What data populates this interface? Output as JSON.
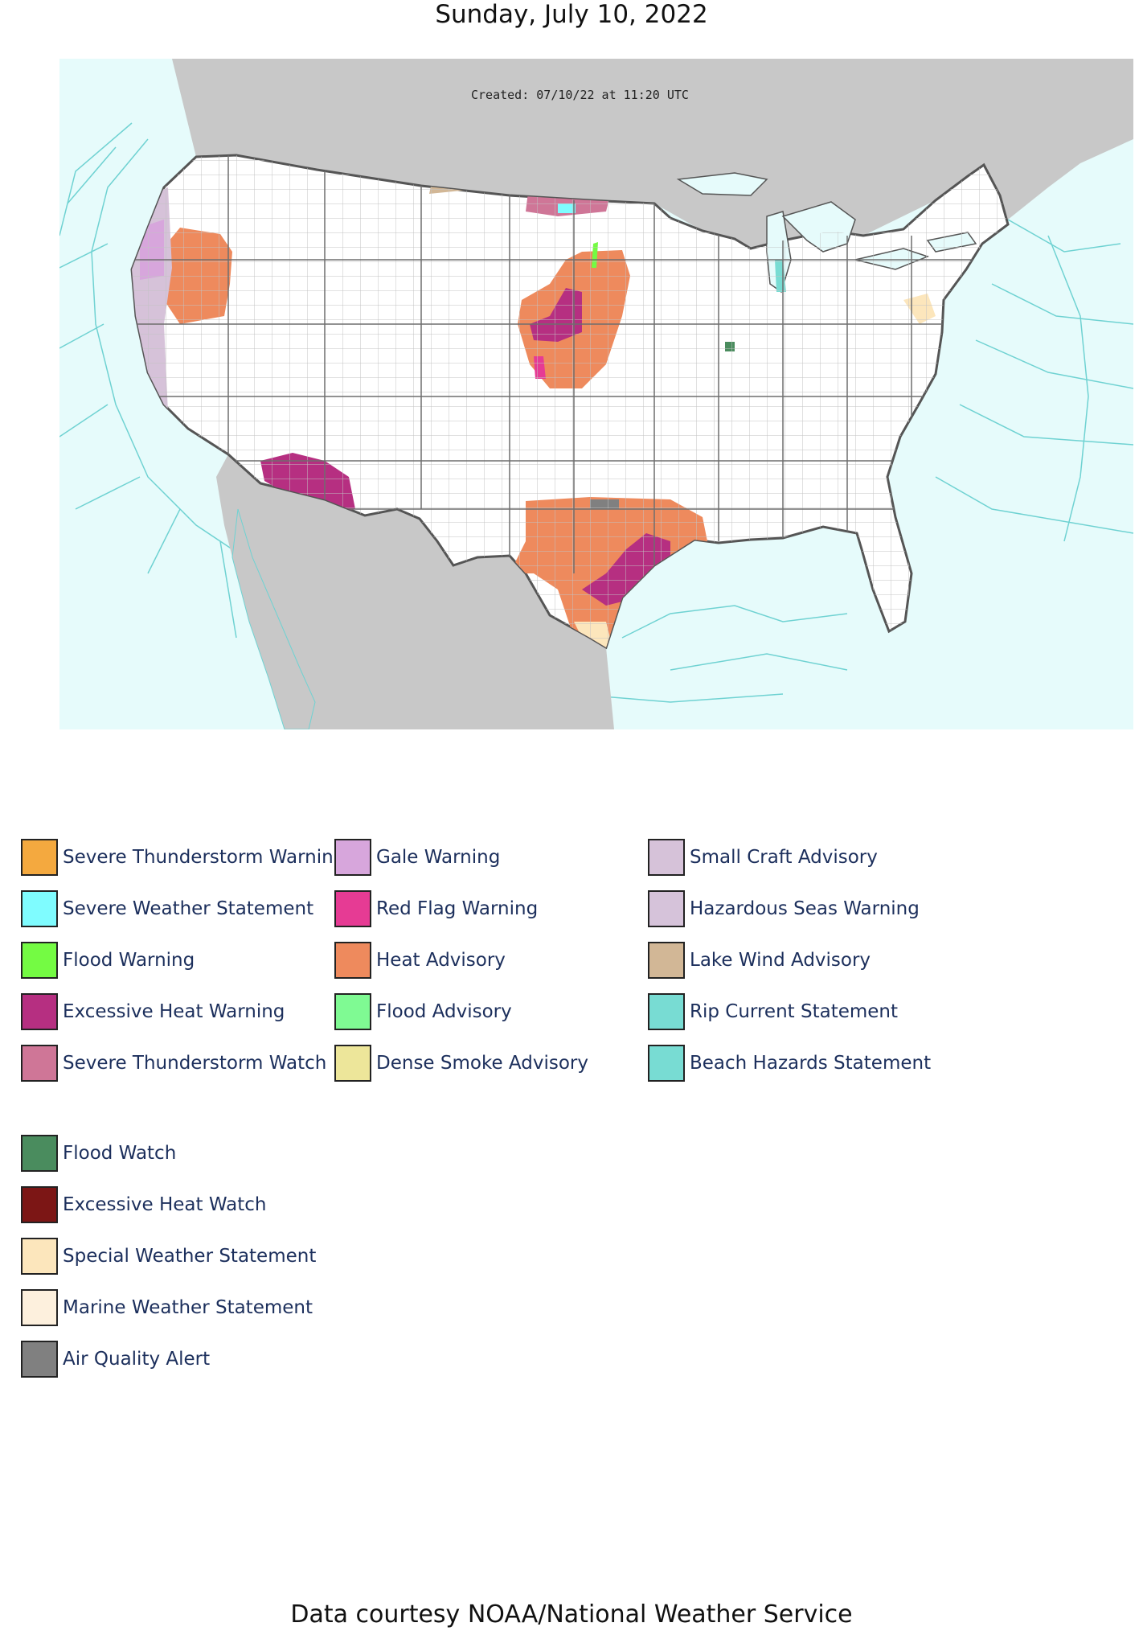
{
  "title": "Sunday, July 10, 2022",
  "map": {
    "created_stamp": "Created: 07/10/22 at 11:20 UTC",
    "colors": {
      "ocean": "#e6fbfb",
      "land_outside": "#c8c8c8",
      "land_us": "#ffffff",
      "county_lines": "#b5b5b5",
      "marine_zones": "#6fd2d2"
    }
  },
  "legend": {
    "columns": [
      [
        {
          "label": "Severe Thunderstorm Warning",
          "color": "#f4a93f"
        },
        {
          "label": "Severe Weather Statement",
          "color": "#7ffcff"
        },
        {
          "label": "Flood Warning",
          "color": "#74fb43"
        },
        {
          "label": "Excessive Heat Warning",
          "color": "#b62f81"
        },
        {
          "label": "Severe Thunderstorm Watch",
          "color": "#cf7697"
        }
      ],
      [
        {
          "label": "Gale Warning",
          "color": "#d7a6dc"
        },
        {
          "label": "Red Flag Warning",
          "color": "#e63b94"
        },
        {
          "label": "Heat Advisory",
          "color": "#ee8a5d"
        },
        {
          "label": "Flood Advisory",
          "color": "#7ffa93"
        },
        {
          "label": "Dense Smoke Advisory",
          "color": "#ede69a"
        }
      ],
      [
        {
          "label": "Small Craft Advisory",
          "color": "#d6c2d9"
        },
        {
          "label": "Hazardous Seas Warning",
          "color": "#d6c3da"
        },
        {
          "label": "Lake Wind Advisory",
          "color": "#d2b796"
        },
        {
          "label": "Rip Current Statement",
          "color": "#78dcd3"
        },
        {
          "label": "Beach Hazards Statement",
          "color": "#78dcd3"
        }
      ]
    ],
    "extra": [
      {
        "label": "Flood Watch",
        "color": "#4a8c5e"
      },
      {
        "label": "Excessive Heat Watch",
        "color": "#7c1615"
      },
      {
        "label": "Special Weather Statement",
        "color": "#fce6bc"
      },
      {
        "label": "Marine Weather Statement",
        "color": "#fdf0dd"
      },
      {
        "label": "Air Quality Alert",
        "color": "#808080"
      }
    ]
  },
  "footer": "Data courtesy NOAA/National Weather Service"
}
